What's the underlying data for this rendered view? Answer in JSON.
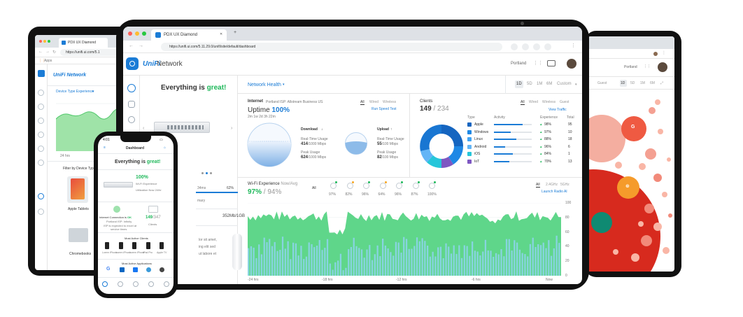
{
  "left_tablet": {
    "tab_title": "PDX UX Diamond",
    "url": "https://unifi.ui.com/5.1",
    "bookmark": "Apps",
    "brand": "UniFi Network",
    "filter_label": "Device Type Experience",
    "chart_label": "24 hrs",
    "filter_title": "Filter by Device Type",
    "device1": "Apple Tablets",
    "device2": "Chromebooks"
  },
  "browser": {
    "tab_title": "PDX UX Diamond",
    "url": "https://unifi.ui.com/5.11.29.0/unifi/site/default/dashboard"
  },
  "header": {
    "brand_prefix": "UniFi",
    "brand_suffix": " Network",
    "site": "Portland"
  },
  "device_panel": {
    "title_prefix": "Everything is ",
    "title_accent": "great!",
    "partial_status": "34ms",
    "partial_pct": "62%",
    "partial_label": "mary",
    "throughput": "352Mb/1GB",
    "lorem1": "lor sit amet,",
    "lorem2": "ing elit sed",
    "lorem3": "ut labore et"
  },
  "toolbar": {
    "network_health": "Network Health",
    "ranges": [
      "1D",
      "5D",
      "1M",
      "6M"
    ],
    "custom": "Custom"
  },
  "internet": {
    "label": "Internet",
    "isp": "Portland ISP: Allstream Business US",
    "filters": [
      "All",
      "Wired",
      "Wireless"
    ],
    "uptime_label": "Uptime",
    "uptime_value": "100%",
    "uptime_since": "2m 1w 2d 3h 22m",
    "speed_test": "Run Speed Test",
    "download": {
      "title": "Download",
      "rt_label": "Real-Time Usage",
      "rt_value": "414",
      "rt_unit": "/1000 Mbps",
      "peak_label": "Peak Usage",
      "peak_value": "624",
      "peak_unit": "/1000 Mbps"
    },
    "upload": {
      "title": "Upload",
      "rt_label": "Real-Time Usage",
      "rt_value": "55",
      "rt_unit": "/100 Mbps",
      "peak_label": "Peak Usage",
      "peak_value": "82",
      "peak_unit": "/100 Mbps"
    }
  },
  "clients": {
    "label": "Clients",
    "count": "149",
    "total": " / 234",
    "filters": [
      "All",
      "Wired",
      "Wireless",
      "Guest"
    ],
    "view_traffic": "View Traffic",
    "col_type": "Type",
    "col_activity": "Activity",
    "col_experience": "Experience",
    "col_total": "Total",
    "rows": [
      {
        "type": "Apple",
        "exp": "98%",
        "total": "95",
        "activity": 0.75,
        "color": "#1565c0"
      },
      {
        "type": "Windows",
        "exp": "97%",
        "total": "10",
        "activity": 0.45,
        "color": "#1e88e5"
      },
      {
        "type": "Linux",
        "exp": "88%",
        "total": "18",
        "activity": 0.6,
        "color": "#42a5f5"
      },
      {
        "type": "Android",
        "exp": "96%",
        "total": "6",
        "activity": 0.3,
        "color": "#64b5f6"
      },
      {
        "type": "iOS",
        "exp": "84%",
        "total": "1",
        "activity": 0.5,
        "color": "#26c6da"
      },
      {
        "type": "IoT",
        "exp": "70%",
        "total": "13",
        "activity": 0.4,
        "color": "#7e57c2"
      }
    ]
  },
  "wifi": {
    "title": "Wi-Fi Experience",
    "title_suffix": " Now/Avg",
    "now": "97%",
    "avg": " / 94%",
    "ap_all": "All",
    "ap_values": [
      "97%",
      "82%",
      "96%",
      "64%",
      "96%",
      "87%",
      "100%"
    ],
    "bands": [
      "All",
      "2.4GHz",
      "5GHz"
    ],
    "launch": "Launch Radio AI",
    "y_ticks": [
      "100",
      "80",
      "60",
      "40",
      "20",
      "0"
    ],
    "x_ticks": [
      "-24 hrs",
      "-18 hrs",
      "-12 hrs",
      "-6 hrs",
      "Now"
    ]
  },
  "phone": {
    "time": "4:01",
    "title": "Dashboard",
    "status_prefix": "Everything is ",
    "status_accent": "great!",
    "wifi_pct": "100%",
    "wifi_label": "Wi-Fi Experience",
    "util": "Utilization Now 24/hr",
    "internet_label": "Internet Connection is",
    "internet_state": "OK",
    "isp": "Portland ISP: Infinity",
    "isp_note": "ISP is expected to excel at",
    "isp_note2": "service times",
    "clients_count": "149",
    "clients_total": "/347",
    "clients_label": "Clients",
    "most_active_clients": "Most Active Clients",
    "client_names": [
      "Lorem iPhone",
      "Lorem iPhone",
      "Lorem iPhone",
      "iPad Pro",
      "Apple TV"
    ],
    "most_active_apps": "Most Active Applications"
  },
  "right_tablet": {
    "site": "Portland",
    "ranges": [
      "1D",
      "5D",
      "1M",
      "6M"
    ],
    "guest": "Guest"
  }
}
